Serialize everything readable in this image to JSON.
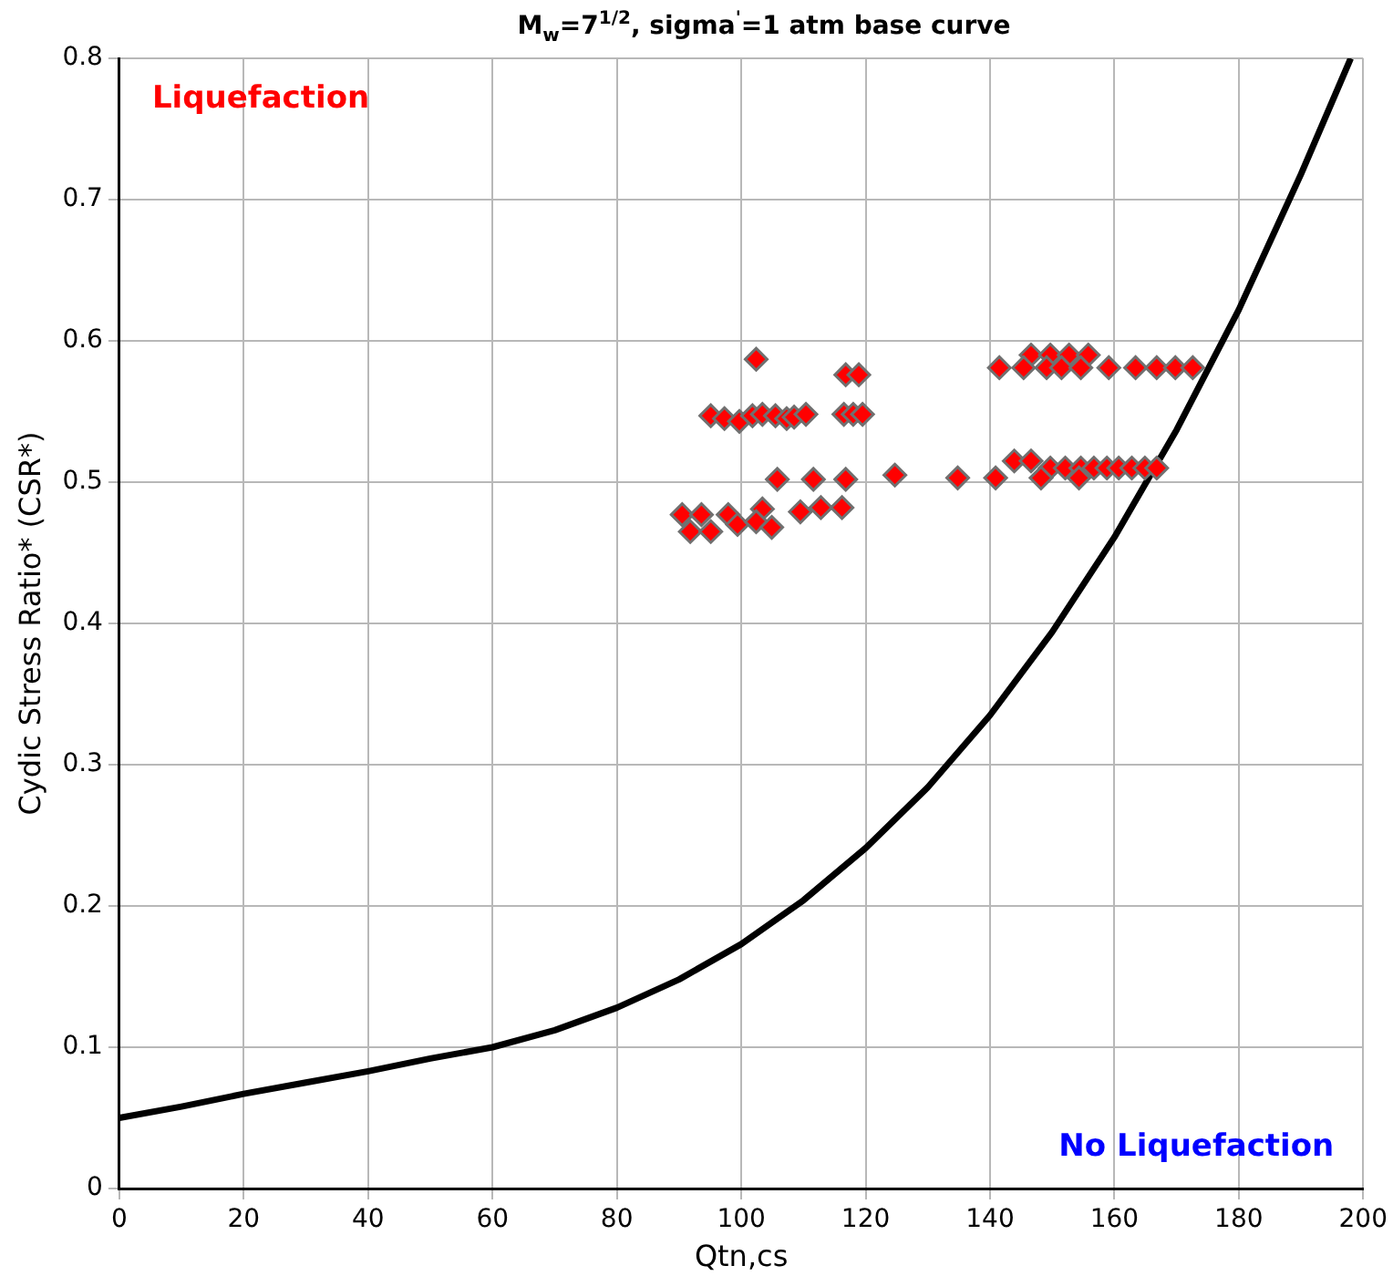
{
  "chart_data": {
    "type": "scatter",
    "title": "M$_{w}$=7$^{1/2}$, sigma$^{'}$=1 atm base curve",
    "xlabel": "Qtn,cs",
    "ylabel": "Cydic Stress Ratio* (CSR*)",
    "xlim": [
      0,
      200
    ],
    "xticks": [
      0,
      20,
      40,
      60,
      80,
      100,
      120,
      140,
      160,
      180,
      200
    ],
    "ylim": [
      0,
      0.8
    ],
    "yticks": [
      0,
      0.1,
      0.2,
      0.3,
      0.4,
      0.5,
      0.6,
      0.7,
      0.8
    ],
    "grid": true,
    "marker": "diamond",
    "annotations": [
      "Liquefaction",
      "No Liquefaction"
    ],
    "series": [
      {
        "type": "line",
        "color": "#000000",
        "marker": "none",
        "x": [
          0,
          10,
          20,
          30,
          40,
          50,
          60,
          70,
          80,
          90,
          100,
          110,
          120,
          130,
          140,
          150,
          160,
          170,
          180,
          190,
          198
        ],
        "values": [
          0.05,
          0.058,
          0.067,
          0.075,
          0.083,
          0.092,
          0.1,
          0.112,
          0.128,
          0.148,
          0.173,
          0.204,
          0.241,
          0.284,
          0.335,
          0.394,
          0.461,
          0.537,
          0.622,
          0.718,
          0.8
        ]
      },
      {
        "color": "#ff0000",
        "x": [
          95.1,
          97.3,
          99.7,
          101.8,
          103.4,
          105.5,
          107.3,
          108.5,
          110.4,
          116.5,
          118,
          119.5,
          102.4,
          116.8,
          118.9,
          105.8,
          111.6,
          116.8,
          124.7,
          90.5,
          93.6,
          97.9,
          103.4,
          109.5,
          112.8,
          116.2,
          91.8,
          95.1,
          99.4,
          102.4,
          104.9,
          146.6,
          149.7,
          152.7,
          155.8,
          141.5,
          145.4,
          149.1,
          151.5,
          154.6,
          159.1,
          163.4,
          166.8,
          169.8,
          172.6,
          143.9,
          146.6,
          149.7,
          152.1,
          154.6,
          156.7,
          158.8,
          160.7,
          162.8,
          164.9,
          166.8,
          134.8,
          140.9,
          148.2,
          154.3
        ],
        "values": [
          0.547,
          0.545,
          0.543,
          0.547,
          0.548,
          0.547,
          0.545,
          0.546,
          0.548,
          0.548,
          0.548,
          0.548,
          0.587,
          0.576,
          0.576,
          0.502,
          0.502,
          0.502,
          0.505,
          0.477,
          0.477,
          0.477,
          0.481,
          0.479,
          0.482,
          0.482,
          0.465,
          0.465,
          0.47,
          0.472,
          0.468,
          0.59,
          0.59,
          0.59,
          0.59,
          0.581,
          0.581,
          0.581,
          0.581,
          0.581,
          0.581,
          0.581,
          0.581,
          0.581,
          0.581,
          0.515,
          0.515,
          0.51,
          0.51,
          0.51,
          0.51,
          0.51,
          0.51,
          0.51,
          0.51,
          0.51,
          0.503,
          0.503,
          0.503,
          0.503
        ]
      }
    ]
  }
}
